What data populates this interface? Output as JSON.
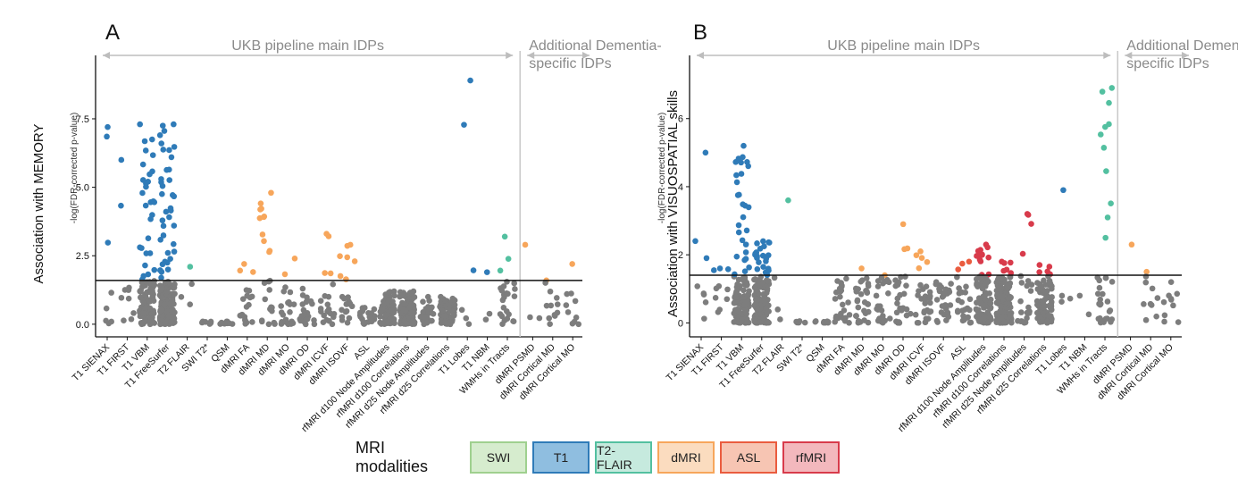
{
  "chart_data": [
    {
      "type": "scatter",
      "panel_letter": "A",
      "ylabel": "Association with MEMORY",
      "ylabel_sub": "-log(FDR-corrected p-value)",
      "ylim": [
        -0.2,
        9.0
      ],
      "yticks": [
        0.0,
        2.5,
        5.0,
        7.5
      ],
      "ytick_labels": [
        "0.0",
        "2.5",
        "5.0",
        "7.5"
      ],
      "threshold": 1.6,
      "divider_after_index": 20,
      "group_labels": [
        "UKB pipeline main IDPs",
        "Additional Dementia-\nspecific IDPs"
      ],
      "categories": [
        "T1 SIENAX",
        "T1 FIRST",
        "T1 VBM",
        "T1 FreeSurfer",
        "T2 FLAIR",
        "SWI T2*",
        "QSM",
        "dMRI FA",
        "dMRI MD",
        "dMRI MO",
        "dMRI OD",
        "dMRI ICVF",
        "dMRI ISOVF",
        "ASL",
        "rfMRI d100 Node Amplitudes",
        "rfMRI d100 Correlations",
        "rfMRI d25 Node Amplitudes",
        "rfMRI d25 Correlations",
        "T1 Lobes",
        "T1 NBM",
        "WMHs in Tracts",
        "dMRI PSMD",
        "dMRI Cortical MD",
        "dMRI Cortical MO"
      ],
      "category_modality": [
        "T1",
        "T1",
        "T1",
        "T1",
        "T2-FLAIR",
        "SWI",
        "SWI",
        "dMRI",
        "dMRI",
        "dMRI",
        "dMRI",
        "dMRI",
        "dMRI",
        "ASL",
        "rfMRI",
        "rfMRI",
        "rfMRI",
        "rfMRI",
        "T1",
        "T1",
        "T2-FLAIR",
        "dMRI",
        "dMRI",
        "dMRI"
      ],
      "category_max": [
        7.2,
        6.0,
        7.3,
        7.3,
        2.1,
        0.1,
        0.1,
        2.2,
        4.8,
        2.4,
        1.3,
        3.3,
        2.9,
        0.6,
        1.2,
        1.2,
        1.0,
        1.0,
        8.9,
        1.9,
        3.2,
        2.9,
        1.6,
        2.2
      ],
      "category_n": [
        8,
        10,
        120,
        150,
        4,
        6,
        8,
        20,
        25,
        22,
        22,
        22,
        22,
        20,
        70,
        110,
        25,
        80,
        6,
        3,
        25,
        3,
        12,
        10
      ]
    },
    {
      "type": "scatter",
      "panel_letter": "B",
      "ylabel": "Association with VISUOSPATIAL skills",
      "ylabel_sub": "-log(FDR-corrected p-value)",
      "ylim": [
        -0.2,
        7.2
      ],
      "yticks": [
        0,
        2,
        4,
        6
      ],
      "ytick_labels": [
        "0",
        "2",
        "4",
        "6"
      ],
      "threshold": 1.4,
      "divider_after_index": 20,
      "group_labels": [
        "UKB pipeline main IDPs",
        "Additional Dementia-\nspecific IDPs"
      ],
      "categories": [
        "T1 SIENAX",
        "T1 FIRST",
        "T1 VBM",
        "T1 FreeSurfer",
        "T2 FLAIR",
        "SWI T2*",
        "QSM",
        "dMRI FA",
        "dMRI MD",
        "dMRI MO",
        "dMRI OD",
        "dMRI ICVF",
        "dMRI ISOVF",
        "ASL",
        "rfMRI d100 Node Amplitudes",
        "rfMRI d100 Correlations",
        "rfMRI d25 Node Amplitudes",
        "rfMRI d25 Correlations",
        "T1 Lobes",
        "T1 NBM",
        "WMHs in Tracts",
        "dMRI PSMD",
        "dMRI Cortical MD",
        "dMRI Cortical MO"
      ],
      "category_modality": [
        "T1",
        "T1",
        "T1",
        "T1",
        "T2-FLAIR",
        "SWI",
        "SWI",
        "dMRI",
        "dMRI",
        "dMRI",
        "dMRI",
        "dMRI",
        "dMRI",
        "ASL",
        "rfMRI",
        "rfMRI",
        "rfMRI",
        "rfMRI",
        "T1",
        "T1",
        "T2-FLAIR",
        "dMRI",
        "dMRI",
        "dMRI"
      ],
      "category_max": [
        5.0,
        1.6,
        5.2,
        2.4,
        3.6,
        0.05,
        0.05,
        1.3,
        1.6,
        1.4,
        2.9,
        2.1,
        1.2,
        1.8,
        2.3,
        1.8,
        3.2,
        1.7,
        3.9,
        0.8,
        6.9,
        2.3,
        1.5,
        1.2
      ],
      "category_n": [
        8,
        10,
        120,
        150,
        4,
        6,
        8,
        25,
        30,
        25,
        25,
        30,
        30,
        25,
        80,
        120,
        25,
        90,
        4,
        2,
        35,
        1,
        10,
        10
      ]
    }
  ],
  "legend": {
    "title": "MRI modalities",
    "items": [
      {
        "label": "SWI",
        "fill": "#d6ecce",
        "border": "#9fd08f"
      },
      {
        "label": "T1",
        "fill": "#8fbee0",
        "border": "#2f7bb8"
      },
      {
        "label": "T2-FLAIR",
        "fill": "#c6eade",
        "border": "#53c0a0"
      },
      {
        "label": "dMRI",
        "fill": "#fbdcbf",
        "border": "#f7a65b"
      },
      {
        "label": "ASL",
        "fill": "#f7c5b3",
        "border": "#ea5c3f"
      },
      {
        "label": "rfMRI",
        "fill": "#f3b8bd",
        "border": "#d83b4b"
      }
    ]
  },
  "modality_colors": {
    "SWI": "#8fd08a",
    "T1": "#2f7bb8",
    "T2-FLAIR": "#53c0a0",
    "dMRI": "#f7a65b",
    "ASL": "#ea5c3f",
    "rfMRI": "#d83b4b",
    "below_threshold": "#7d7d7d"
  }
}
